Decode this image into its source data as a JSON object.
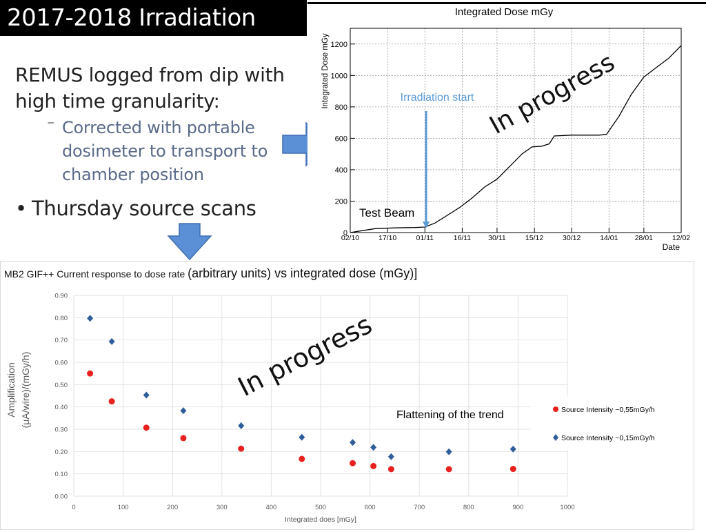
{
  "slide": {
    "title": "2017-2018 Irradiation",
    "bullet1": "REMUS logged from dip with high time granularity:",
    "sub_bullet": "Corrected with  portable dosimeter to transport to chamber position",
    "bullet2": "Thursday source scans",
    "sub_marker": "⁻",
    "bullet_marker": "•"
  },
  "colors": {
    "arrow_fill": "#5b8fd6",
    "arrow_stroke": "#3f6fb0",
    "series_red": "#e8211f",
    "series_blue": "#2f5f9a",
    "annotation_blue": "#5b9bd5"
  },
  "chart_data": [
    {
      "type": "line",
      "title": "Integrated Dose mGy",
      "ylabel": "Integrated Dose mGy",
      "xlabel": "Date",
      "xlim": [
        "2017-10-02",
        "2018-02-12"
      ],
      "ylim": [
        0,
        1300
      ],
      "x_ticks": [
        "2017-10-02",
        "2017-10-17",
        "2017-11-01",
        "2017-11-16",
        "2017-11-30",
        "2017-12-15",
        "2017-12-30",
        "2018-01-14",
        "2018-01-28",
        "2018-02-12"
      ],
      "x_tick_labels": [
        "02/10",
        "17/10",
        "01/11",
        "16/11",
        "30/11",
        "15/12",
        "30/12",
        "14/01",
        "28/01",
        "12/02"
      ],
      "y_ticks": [
        0,
        200,
        400,
        600,
        800,
        1000,
        1200
      ],
      "y_tick_labels": [
        "0",
        "200",
        "400",
        "600",
        "800",
        "1000",
        "1200"
      ],
      "grid": true,
      "series": [
        {
          "x": [
            "2017-10-02",
            "2017-10-06",
            "2017-10-12",
            "2017-10-20",
            "2017-10-28",
            "2017-11-01",
            "2017-11-05",
            "2017-11-10",
            "2017-11-15",
            "2017-11-20",
            "2017-11-25",
            "2017-11-30",
            "2017-12-05",
            "2017-12-10",
            "2017-12-14",
            "2017-12-18",
            "2017-12-21",
            "2017-12-23",
            "2017-12-30",
            "2018-01-05",
            "2018-01-10",
            "2018-01-13",
            "2018-01-18",
            "2018-01-23",
            "2018-01-28",
            "2018-02-02",
            "2018-02-07",
            "2018-02-12"
          ],
          "values": [
            0,
            10,
            25,
            30,
            32,
            35,
            60,
            110,
            160,
            220,
            290,
            340,
            420,
            500,
            545,
            550,
            565,
            615,
            620,
            620,
            620,
            625,
            740,
            880,
            990,
            1050,
            1110,
            1190
          ]
        }
      ],
      "annotations": {
        "irradiation_start": "Irradiation start",
        "test_beam": "Test Beam",
        "stamp": "In progress"
      }
    },
    {
      "type": "scatter",
      "title_small": "MB2 GIF++ Current response to dose rate",
      "title_large": "(arbitrary units) vs  integrated  dose (mGy)]",
      "xlabel": "Integrated does  [mGy]",
      "ylabel_line1": "Amplification",
      "ylabel_line2": "(μA/wire)/(mGy/h)",
      "xlim": [
        0,
        1000
      ],
      "ylim": [
        0,
        0.9
      ],
      "x_ticks": [
        0,
        100,
        200,
        300,
        400,
        500,
        600,
        700,
        800,
        900,
        1000
      ],
      "x_tick_labels": [
        "0",
        "100",
        "200",
        "300",
        "400",
        "500",
        "600",
        "700",
        "800",
        "900",
        "1000"
      ],
      "y_ticks": [
        0,
        0.1,
        0.2,
        0.3,
        0.4,
        0.5,
        0.6,
        0.7,
        0.8,
        0.9
      ],
      "y_tick_labels": [
        "0.00",
        "0.10",
        "0.20",
        "0.30",
        "0.40",
        "0.50",
        "0.60",
        "0.70",
        "0.80",
        "0.90"
      ],
      "grid": true,
      "legend_position": "right",
      "series": [
        {
          "name": "Source Intensity ~0,55mGy/h",
          "marker": "circle",
          "color": "#e8211f",
          "x": [
            33,
            77,
            147,
            222,
            339,
            462,
            565,
            607,
            643,
            760,
            890
          ],
          "values": [
            0.55,
            0.425,
            0.307,
            0.26,
            0.213,
            0.167,
            0.148,
            0.135,
            0.121,
            0.121,
            0.122
          ]
        },
        {
          "name": "Source Intensity ~0,15mGy/h",
          "marker": "diamond",
          "color": "#2f5f9a",
          "x": [
            33,
            77,
            147,
            222,
            339,
            462,
            565,
            607,
            643,
            760,
            890
          ],
          "values": [
            0.797,
            0.693,
            0.453,
            0.383,
            0.316,
            0.264,
            0.241,
            0.219,
            0.177,
            0.199,
            0.211
          ]
        }
      ],
      "annotations": {
        "flattening": "Flattening of the trend",
        "stamp": "In progress"
      }
    }
  ]
}
